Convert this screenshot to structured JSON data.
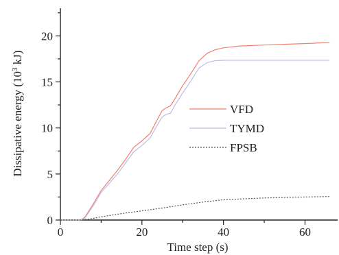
{
  "chart_data": {
    "type": "line",
    "title": "",
    "xlabel": "Time step (s)",
    "ylabel_prefix": "Dissipative energy (10",
    "ylabel_sup": "3",
    "ylabel_suffix": " kJ)",
    "xlim": [
      0,
      68
    ],
    "ylim": [
      0,
      23
    ],
    "xticks": [
      0,
      20,
      40,
      60
    ],
    "yticks": [
      0,
      5,
      10,
      15,
      20
    ],
    "grid": false,
    "legend_position": "center-right",
    "series": [
      {
        "name": "VFD",
        "color": "#f08070",
        "dash": "",
        "x": [
          0,
          5,
          6,
          8,
          10,
          12,
          14,
          16,
          18,
          20,
          22,
          24,
          25,
          26,
          27,
          28,
          30,
          32,
          34,
          36,
          38,
          40,
          44,
          50,
          56,
          62,
          66
        ],
        "y": [
          0,
          0,
          0.3,
          1.7,
          3.2,
          4.3,
          5.4,
          6.6,
          7.9,
          8.6,
          9.4,
          11.1,
          11.9,
          12.2,
          12.4,
          13.1,
          14.6,
          15.9,
          17.3,
          18.1,
          18.5,
          18.7,
          18.9,
          19.0,
          19.1,
          19.2,
          19.3
        ]
      },
      {
        "name": "TYMD",
        "color": "#b8bfe6",
        "dash": "",
        "x": [
          0,
          5,
          6,
          8,
          10,
          12,
          14,
          16,
          18,
          20,
          22,
          24,
          25,
          26,
          27,
          28,
          30,
          32,
          34,
          36,
          38,
          40,
          44,
          50,
          56,
          62,
          66
        ],
        "y": [
          0,
          0,
          0.2,
          1.5,
          3.0,
          4.0,
          5.0,
          6.2,
          7.4,
          8.1,
          8.9,
          10.5,
          11.2,
          11.5,
          11.6,
          12.4,
          13.8,
          15.1,
          16.5,
          17.1,
          17.3,
          17.35,
          17.35,
          17.35,
          17.35,
          17.35,
          17.35
        ]
      },
      {
        "name": "FPSB",
        "color": "#555555",
        "dash": "2,2",
        "x": [
          0,
          5,
          7,
          10,
          15,
          20,
          25,
          30,
          35,
          40,
          45,
          50,
          55,
          60,
          66
        ],
        "y": [
          0,
          0,
          0.1,
          0.35,
          0.7,
          1.0,
          1.3,
          1.65,
          1.95,
          2.2,
          2.3,
          2.4,
          2.45,
          2.5,
          2.55
        ]
      }
    ]
  }
}
